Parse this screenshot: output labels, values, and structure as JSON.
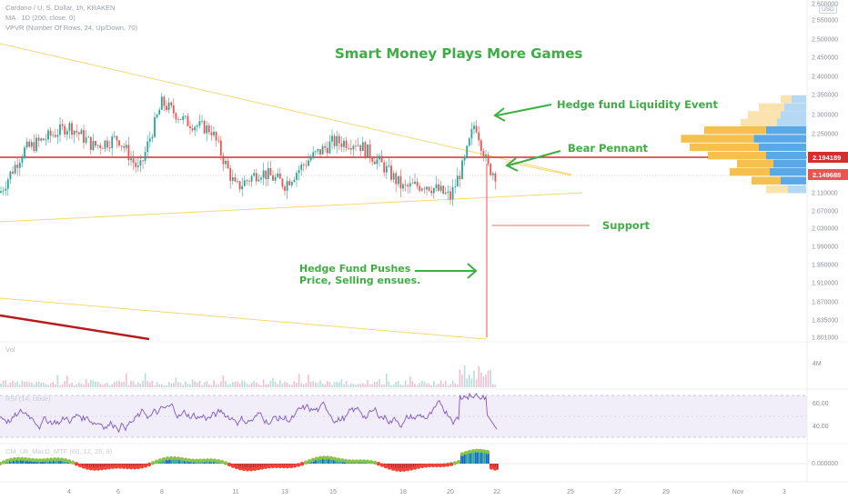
{
  "header": {
    "symbol_line": "Cardano / U. S. Dollar, 1h, KRAKEN",
    "ma_line": "MA · 1D (200, close, 0)",
    "vpvr_line": "VPVR (Number Of Rows, 24, Up/Down, 70)",
    "currency_badge": "USD"
  },
  "annotations": {
    "title": "Smart Money Plays More Games",
    "liquidity": "Hedge fund Liquidity Event",
    "pennant": "Bear Pennant",
    "support": "Support",
    "pushes_line1": "Hedge Fund Pushes",
    "pushes_line2": "Price, Selling ensues."
  },
  "panes": {
    "volume_label": "Vol",
    "volume_max": "4M",
    "rsi_label": "RSI (14, close)",
    "rsi_high": "60.00",
    "rsi_low": "40.00",
    "macd_label": "CM_Ult_MacD_MTF (60, 12, 26, 9)",
    "macd_zero": "0.000000"
  },
  "price_tags": {
    "red_level": "2.194189",
    "last_price": "2.149688"
  },
  "colors": {
    "up": "#26a69a",
    "down": "#ef5350",
    "trend": "#f7d774",
    "red_level": "#d32f2f",
    "ma_line": "#b71c1c",
    "annotation": "#3dae43",
    "rsi": "#7e57c2",
    "vpvr_up": "#5aa9e6",
    "vpvr_down": "#f6c04f"
  },
  "chart_data": {
    "type": "candlestick",
    "x_tick_labels": [
      "4",
      "6",
      "8",
      "11",
      "13",
      "15",
      "18",
      "20",
      "22",
      "25",
      "27",
      "29",
      "Nov",
      "3"
    ],
    "y_tick_labels": [
      "2.600000",
      "2.550000",
      "2.500000",
      "2.450000",
      "2.400000",
      "2.350000",
      "2.300000",
      "2.250000",
      "2.110000",
      "2.070000",
      "2.030000",
      "1.990000",
      "1.950000",
      "1.910000",
      "1.870000",
      "1.835000",
      "1.801000"
    ],
    "ylim": [
      1.801,
      2.6
    ],
    "horizontal_level": 2.194189,
    "last_price": 2.149688,
    "price_path": [
      {
        "x": "Oct 2",
        "y": 2.11
      },
      {
        "x": "Oct 3",
        "y": 2.21
      },
      {
        "x": "Oct 4",
        "y": 2.27
      },
      {
        "x": "Oct 5",
        "y": 2.22
      },
      {
        "x": "Oct 6",
        "y": 2.24
      },
      {
        "x": "Oct 7",
        "y": 2.16
      },
      {
        "x": "Oct 8",
        "y": 2.33
      },
      {
        "x": "Oct 9",
        "y": 2.28
      },
      {
        "x": "Oct 10",
        "y": 2.26
      },
      {
        "x": "Oct 11",
        "y": 2.12
      },
      {
        "x": "Oct 12",
        "y": 2.16
      },
      {
        "x": "Oct 13",
        "y": 2.13
      },
      {
        "x": "Oct 14",
        "y": 2.19
      },
      {
        "x": "Oct 15",
        "y": 2.23
      },
      {
        "x": "Oct 16",
        "y": 2.23
      },
      {
        "x": "Oct 17",
        "y": 2.18
      },
      {
        "x": "Oct 18",
        "y": 2.12
      },
      {
        "x": "Oct 19",
        "y": 2.13
      },
      {
        "x": "Oct 20",
        "y": 2.1
      },
      {
        "x": "Oct 20.5",
        "y": 2.18
      },
      {
        "x": "Oct 21",
        "y": 2.28
      },
      {
        "x": "Oct 21.5",
        "y": 2.17
      },
      {
        "x": "Oct 22",
        "y": 2.15
      }
    ],
    "wick_low": 1.801,
    "vpvr_rows": [
      {
        "price": 2.33,
        "up": 0.2,
        "down": 0.15
      },
      {
        "price": 2.31,
        "up": 0.3,
        "down": 0.35
      },
      {
        "price": 2.29,
        "up": 0.35,
        "down": 0.45
      },
      {
        "price": 2.27,
        "up": 0.4,
        "down": 0.5
      },
      {
        "price": 2.25,
        "up": 0.55,
        "down": 0.85
      },
      {
        "price": 2.23,
        "up": 0.72,
        "down": 1.0
      },
      {
        "price": 2.21,
        "up": 0.65,
        "down": 0.95
      },
      {
        "price": 2.19,
        "up": 0.55,
        "down": 0.8
      },
      {
        "price": 2.17,
        "up": 0.45,
        "down": 0.5
      },
      {
        "price": 2.15,
        "up": 0.5,
        "down": 0.55
      },
      {
        "price": 2.13,
        "up": 0.35,
        "down": 0.4
      },
      {
        "price": 2.11,
        "up": 0.25,
        "down": 0.3
      }
    ]
  }
}
